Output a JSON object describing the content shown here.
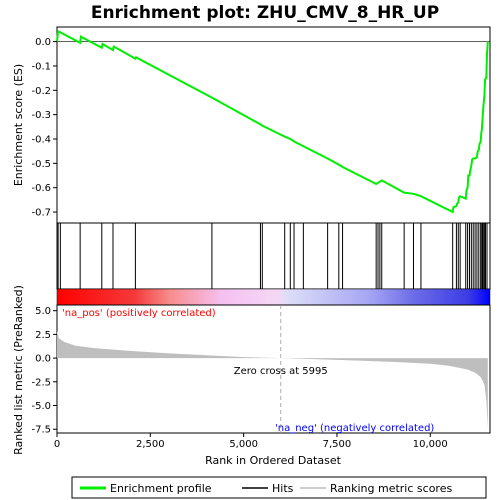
{
  "chart_data": {
    "type": "line",
    "title": "Enrichment plot: ZHU_CMV_8_HR_UP",
    "xlabel": "Rank in Ordered Dataset",
    "top_ylabel": "Enrichment score (ES)",
    "bottom_ylabel": "Ranked list metric (PreRanked)",
    "xlim": [
      0,
      11600
    ],
    "x_ticks": [
      0,
      2500,
      5000,
      7500,
      10000
    ],
    "x_tick_labels": [
      "0",
      "2,500",
      "5,000",
      "7,500",
      "10,000"
    ],
    "es_ylim": [
      -0.745,
      0.06
    ],
    "es_ticks": [
      0.0,
      -0.1,
      -0.2,
      -0.3,
      -0.4,
      -0.5,
      -0.6,
      -0.7
    ],
    "es_tick_labels": [
      "0.0",
      "-0.1",
      "-0.2",
      "-0.3",
      "-0.4",
      "-0.5",
      "-0.6",
      "-0.7"
    ],
    "metric_ylim": [
      -7.9,
      5.6
    ],
    "metric_ticks": [
      5.0,
      2.5,
      0.0,
      -2.5,
      -5.0,
      -7.5
    ],
    "metric_tick_labels": [
      "5.0",
      "2.5",
      "0.0",
      "-2.5",
      "-5.0",
      "-7.5"
    ],
    "zero_cross": 5995,
    "annotations": {
      "pos": "'na_pos' (positively correlated)",
      "neg": "'na_neg' (negatively correlated)",
      "zero": "Zero cross at 5995"
    },
    "colors": {
      "enrichment": "#00ee00",
      "hits": "#000000",
      "metric": "#bebebe",
      "pos_label": "#ff0000",
      "neg_label": "#0000ff"
    },
    "hits": [
      30,
      90,
      620,
      1200,
      1500,
      2100,
      4150,
      5450,
      5500,
      6100,
      6250,
      6350,
      6600,
      7250,
      7550,
      7650,
      8550,
      8600,
      8650,
      8700,
      9300,
      9550,
      9750,
      10600,
      10700,
      10750,
      10800,
      10950,
      11000,
      11050,
      11100,
      11150,
      11200,
      11250,
      11300,
      11350,
      11380,
      11400,
      11420,
      11450,
      11480,
      11520
    ],
    "es_points": [
      [
        0,
        0.0
      ],
      [
        30,
        0.042
      ],
      [
        90,
        0.038
      ],
      [
        620,
        -0.005
      ],
      [
        640,
        0.02
      ],
      [
        1200,
        -0.025
      ],
      [
        1220,
        -0.01
      ],
      [
        1500,
        -0.035
      ],
      [
        1520,
        -0.02
      ],
      [
        2100,
        -0.07
      ],
      [
        2120,
        -0.065
      ],
      [
        4150,
        -0.23
      ],
      [
        5450,
        -0.34
      ],
      [
        5500,
        -0.345
      ],
      [
        6100,
        -0.39
      ],
      [
        6250,
        -0.4
      ],
      [
        6350,
        -0.41
      ],
      [
        6600,
        -0.43
      ],
      [
        7250,
        -0.48
      ],
      [
        7550,
        -0.505
      ],
      [
        7650,
        -0.515
      ],
      [
        8550,
        -0.585
      ],
      [
        8600,
        -0.58
      ],
      [
        8650,
        -0.575
      ],
      [
        8700,
        -0.57
      ],
      [
        9300,
        -0.62
      ],
      [
        9550,
        -0.625
      ],
      [
        9750,
        -0.635
      ],
      [
        10600,
        -0.7
      ],
      [
        10620,
        -0.68
      ],
      [
        10700,
        -0.675
      ],
      [
        10720,
        -0.665
      ],
      [
        10750,
        -0.66
      ],
      [
        10770,
        -0.64
      ],
      [
        10800,
        -0.635
      ],
      [
        10950,
        -0.645
      ],
      [
        10970,
        -0.61
      ],
      [
        11000,
        -0.6
      ],
      [
        11020,
        -0.55
      ],
      [
        11050,
        -0.55
      ],
      [
        11070,
        -0.53
      ],
      [
        11100,
        -0.51
      ],
      [
        11120,
        -0.485
      ],
      [
        11150,
        -0.48
      ],
      [
        11200,
        -0.48
      ],
      [
        11250,
        -0.475
      ],
      [
        11270,
        -0.45
      ],
      [
        11300,
        -0.445
      ],
      [
        11320,
        -0.42
      ],
      [
        11350,
        -0.41
      ],
      [
        11370,
        -0.37
      ],
      [
        11380,
        -0.365
      ],
      [
        11400,
        -0.32
      ],
      [
        11420,
        -0.27
      ],
      [
        11450,
        -0.22
      ],
      [
        11470,
        -0.155
      ],
      [
        11500,
        -0.15
      ],
      [
        11520,
        -0.05
      ],
      [
        11540,
        0.0
      ]
    ],
    "metric_points": [
      [
        0,
        2.9
      ],
      [
        50,
        2.1
      ],
      [
        200,
        1.7
      ],
      [
        500,
        1.3
      ],
      [
        1000,
        1.05
      ],
      [
        2000,
        0.75
      ],
      [
        3000,
        0.5
      ],
      [
        4000,
        0.3
      ],
      [
        5000,
        0.1
      ],
      [
        5995,
        0.0
      ],
      [
        7000,
        -0.12
      ],
      [
        8000,
        -0.25
      ],
      [
        9000,
        -0.4
      ],
      [
        10000,
        -0.6
      ],
      [
        10500,
        -0.8
      ],
      [
        11000,
        -1.2
      ],
      [
        11200,
        -1.55
      ],
      [
        11350,
        -2.0
      ],
      [
        11450,
        -2.8
      ],
      [
        11500,
        -4.4
      ],
      [
        11540,
        -7.4
      ]
    ]
  },
  "legend": {
    "items": [
      {
        "label": "Enrichment profile",
        "color": "#00ee00",
        "kind": "thick-line"
      },
      {
        "label": "Hits",
        "color": "#000000",
        "kind": "line"
      },
      {
        "label": "Ranking metric scores",
        "color": "#bebebe",
        "kind": "line"
      }
    ]
  }
}
